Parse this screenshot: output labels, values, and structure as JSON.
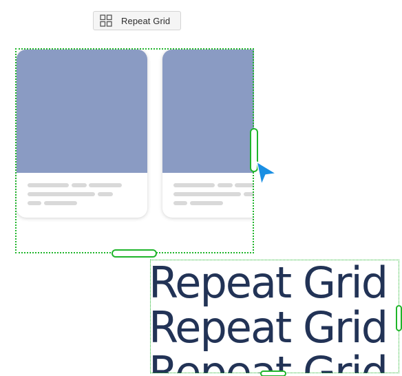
{
  "toolbar": {
    "repeat_grid_label": "Repeat Grid",
    "repeat_grid_icon": "grid-icon"
  },
  "grid": {
    "card_count_visible": 2,
    "card_image_color": "#8a9bc3",
    "selection_color": "#1fb52a"
  },
  "text_grid": {
    "rows": [
      "Repeat Grid",
      "Repeat Grid",
      "Repeat Grid"
    ],
    "text_color": "#223356"
  },
  "cursor": {
    "icon": "pointer-arrow-icon",
    "color": "#1a8fe3"
  }
}
